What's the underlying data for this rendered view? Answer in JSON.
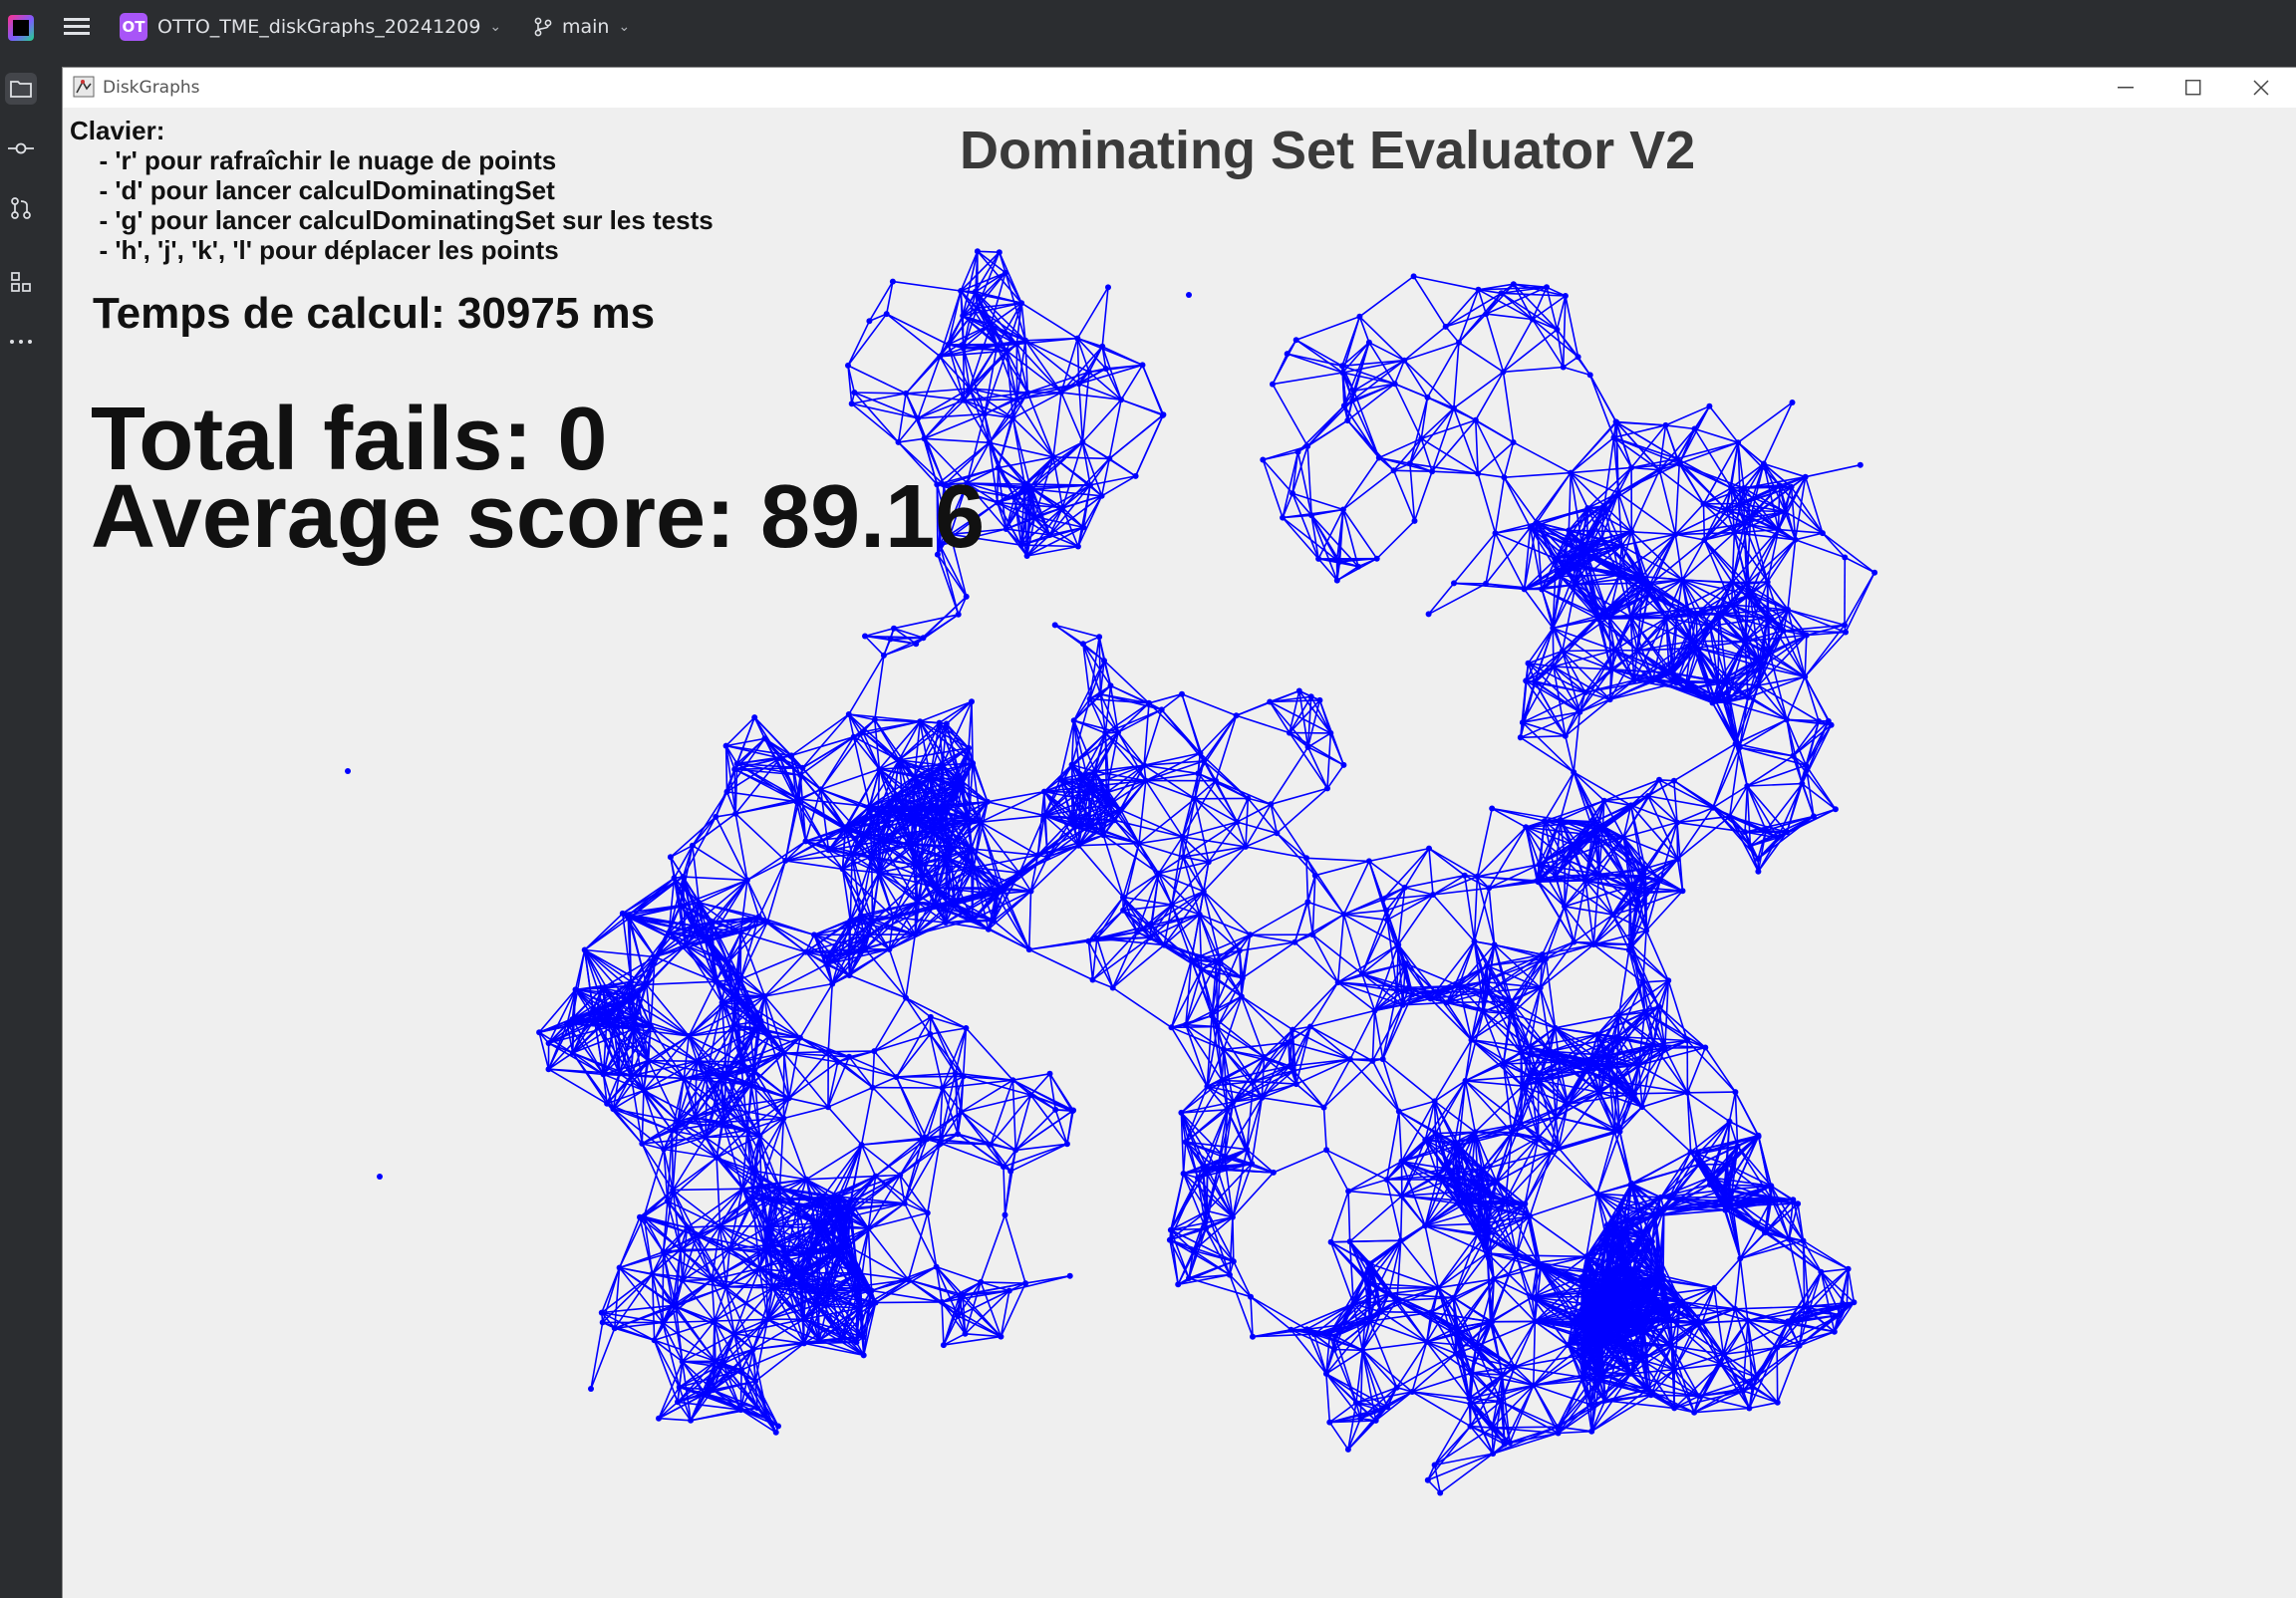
{
  "ide": {
    "project_badge": "OT",
    "project_name": "OTTO_TME_diskGraphs_20241209",
    "branch": "main"
  },
  "window": {
    "title": "DiskGraphs"
  },
  "app": {
    "keyboard_title": "Clavier:",
    "keyboard_lines": [
      "  - 'r' pour rafraîchir le nuage de points",
      "  - 'd' pour lancer calculDominatingSet",
      "  - 'g' pour lancer calculDominatingSet sur les tests",
      "  - 'h', 'j', 'k', 'l' pour déplacer les points"
    ],
    "title": "Dominating Set Evaluator V2",
    "calc_time": "Temps de calcul: 30975 ms",
    "total_fails": "Total fails: 0",
    "average_score": "Average score: 89.16"
  },
  "colors": {
    "graph": "#0000ff",
    "canvas_bg": "#efefef",
    "ide_bg": "#2b2d30"
  }
}
